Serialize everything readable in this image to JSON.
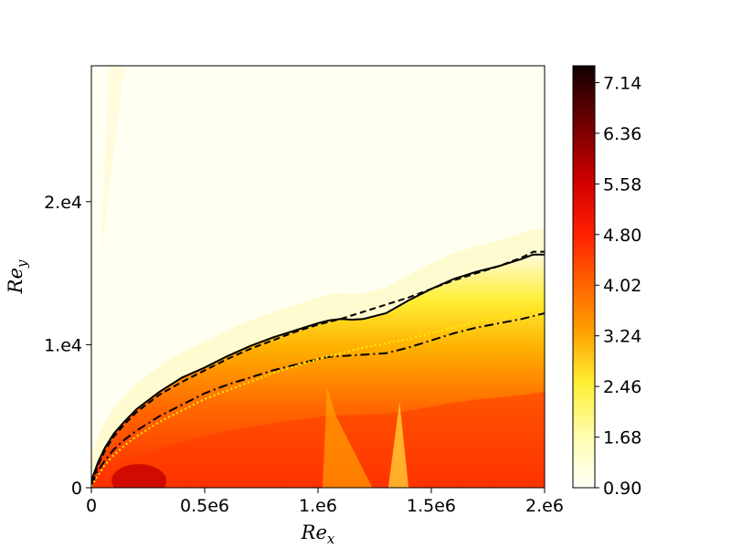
{
  "chart_data": {
    "type": "heatmap",
    "title": "",
    "xlabel": "Re",
    "xlabel_sub": "x",
    "ylabel": "Re",
    "ylabel_sub": "y",
    "xlim": [
      0,
      2000000
    ],
    "ylim": [
      0,
      29500
    ],
    "x_ticks": [
      {
        "value": 0,
        "label": "0"
      },
      {
        "value": 500000,
        "label": "0.5e6"
      },
      {
        "value": 1000000,
        "label": "1.e6"
      },
      {
        "value": 1500000,
        "label": "1.5e6"
      },
      {
        "value": 2000000,
        "label": "2.e6"
      }
    ],
    "y_ticks": [
      {
        "value": 0,
        "label": "0"
      },
      {
        "value": 10000,
        "label": "1.e4"
      },
      {
        "value": 20000,
        "label": "2.e4"
      }
    ],
    "colorbar": {
      "colormap": "hot_r",
      "range": [
        0.9,
        7.4
      ],
      "ticks": [
        {
          "value": 0.9,
          "label": "0.90"
        },
        {
          "value": 1.68,
          "label": "1.68"
        },
        {
          "value": 2.46,
          "label": "2.46"
        },
        {
          "value": 3.24,
          "label": "3.24"
        },
        {
          "value": 4.02,
          "label": "4.02"
        },
        {
          "value": 4.8,
          "label": "4.80"
        },
        {
          "value": 5.58,
          "label": "5.58"
        },
        {
          "value": 6.36,
          "label": "6.36"
        },
        {
          "value": 7.14,
          "label": "7.14"
        }
      ]
    },
    "grid": false,
    "lines": [
      {
        "style": "solid",
        "color": "#000000",
        "x": [
          0,
          30000,
          60000,
          100000,
          150000,
          200000,
          300000,
          400000,
          500000,
          600000,
          700000,
          800000,
          900000,
          1000000,
          1050000,
          1100000,
          1150000,
          1200000,
          1300000,
          1400000,
          1500000,
          1600000,
          1700000,
          1800000,
          1900000,
          1950000,
          2000000
        ],
        "y": [
          500,
          1800,
          2800,
          3800,
          4700,
          5500,
          6700,
          7700,
          8400,
          9200,
          9900,
          10500,
          11000,
          11500,
          11700,
          11800,
          11750,
          11800,
          12200,
          13100,
          13900,
          14600,
          15100,
          15500,
          16000,
          16300,
          16300
        ]
      },
      {
        "style": "dashed",
        "color": "#000000",
        "x": [
          0,
          30000,
          60000,
          100000,
          150000,
          200000,
          300000,
          400000,
          500000,
          600000,
          700000,
          800000,
          900000,
          1000000,
          1100000,
          1200000,
          1300000,
          1400000,
          1500000,
          1600000,
          1700000,
          1800000,
          1900000,
          1950000,
          2000000
        ],
        "y": [
          300,
          1600,
          2600,
          3600,
          4500,
          5300,
          6500,
          7400,
          8200,
          9000,
          9700,
          10300,
          10900,
          11400,
          11800,
          12300,
          12800,
          13300,
          13900,
          14500,
          15000,
          15500,
          16100,
          16500,
          16500
        ]
      },
      {
        "style": "dashdot",
        "color": "#000000",
        "x": [
          0,
          30000,
          60000,
          100000,
          150000,
          200000,
          300000,
          400000,
          500000,
          600000,
          700000,
          800000,
          900000,
          1000000,
          1050000,
          1100000,
          1200000,
          1300000,
          1400000,
          1500000,
          1600000,
          1700000,
          1800000,
          1900000,
          2000000
        ],
        "y": [
          200,
          1200,
          1900,
          2700,
          3400,
          4000,
          5000,
          5800,
          6600,
          7200,
          7700,
          8200,
          8600,
          9000,
          9150,
          9200,
          9300,
          9400,
          9800,
          10300,
          10800,
          11200,
          11500,
          11800,
          12200
        ]
      },
      {
        "style": "dotted",
        "color": "#ffee00",
        "x": [
          0,
          30000,
          60000,
          100000,
          150000,
          200000,
          300000,
          400000,
          500000,
          600000,
          700000,
          800000,
          900000,
          1000000,
          1100000,
          1200000,
          1300000,
          1400000,
          1500000,
          1600000,
          1700000,
          1800000,
          1900000,
          2000000
        ],
        "y": [
          100,
          900,
          1600,
          2300,
          3000,
          3600,
          4600,
          5400,
          6200,
          6800,
          7400,
          8000,
          8500,
          9000,
          9400,
          9800,
          10100,
          10400,
          10800,
          11200,
          11600,
          11900,
          12300,
          12600
        ]
      }
    ]
  }
}
